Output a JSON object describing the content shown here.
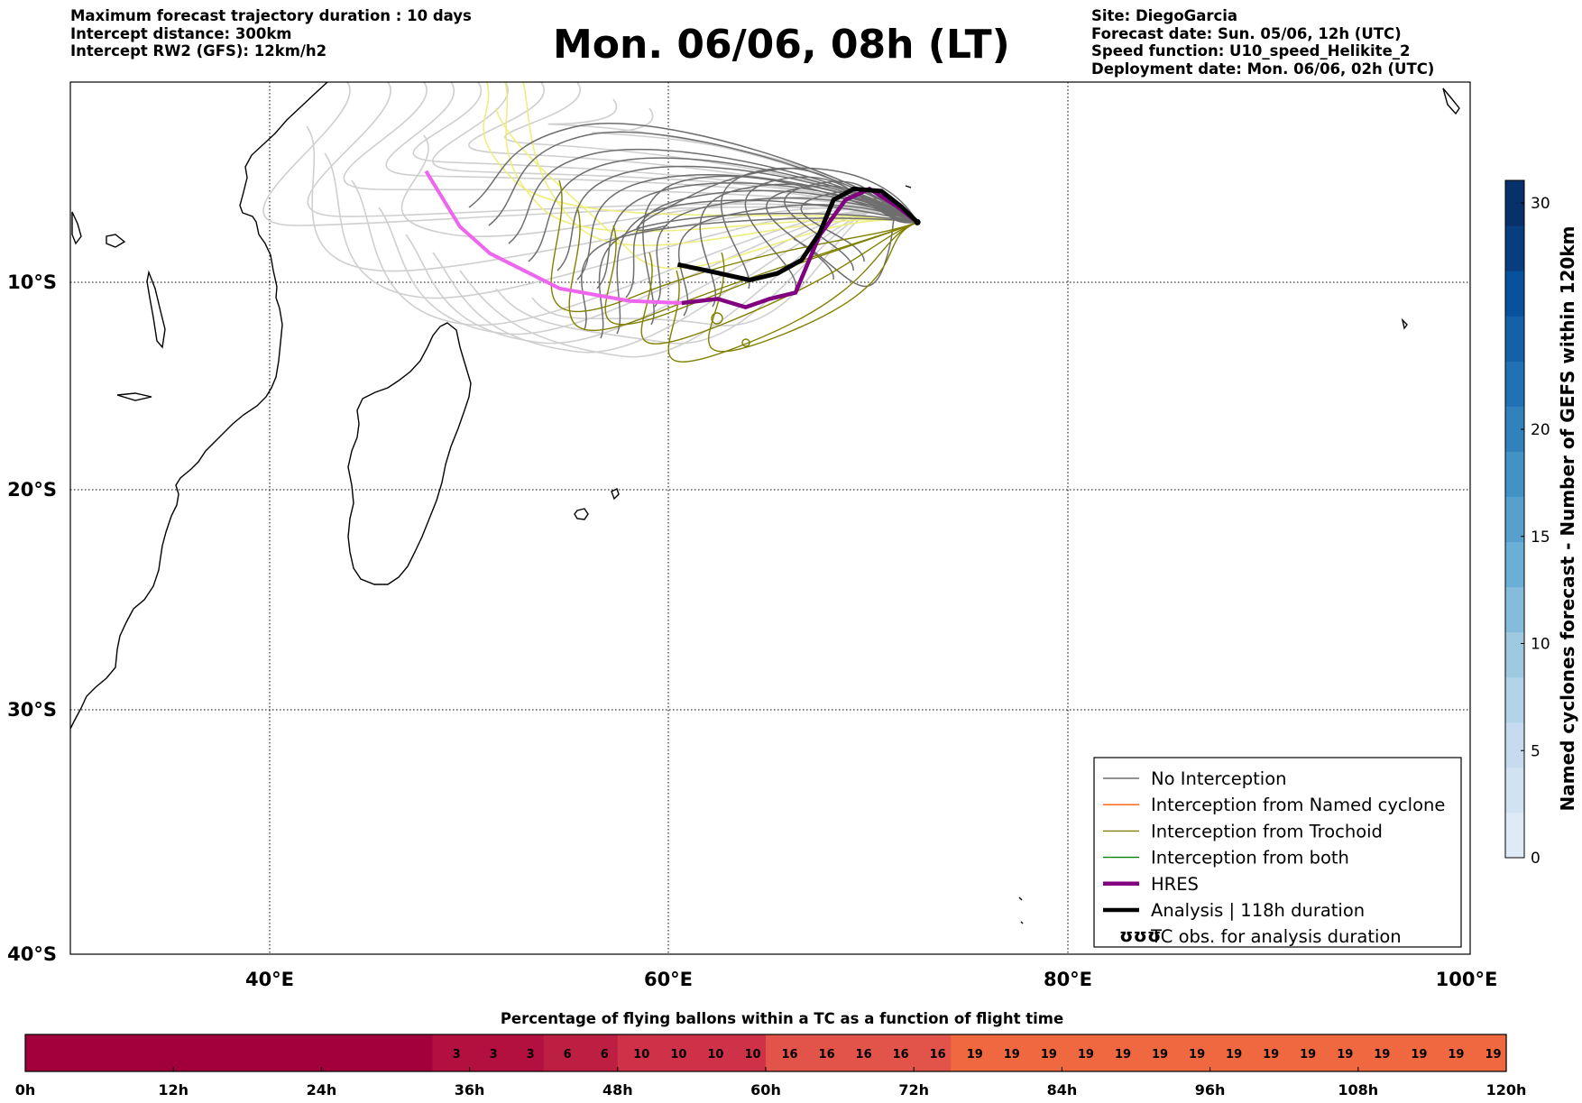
{
  "header": {
    "left_lines": [
      "Maximum forecast trajectory duration : 10 days",
      "Intercept distance: 300km",
      "Intercept RW2 (GFS):  12km/h2"
    ],
    "title": "Mon. 06/06, 08h (LT)",
    "right_lines": [
      "Site: DiegoGarcia",
      "Forecast date: Sun. 05/06, 12h (UTC)",
      "Speed function: U10_speed_Helikite_2",
      "Deployment date: Mon. 06/06, 02h (UTC)"
    ]
  },
  "map": {
    "lon_ticks": [
      "40°E",
      "60°E",
      "80°E",
      "100°E"
    ],
    "lat_ticks": [
      "10°S",
      "20°S",
      "30°S",
      "40°S"
    ],
    "colors": {
      "gefs_gray": "#6e6e6e",
      "gefs_light": "#cfcfcf",
      "gefs_yellow": "#eeee80",
      "trochoid": "#808000",
      "hres": "#800080",
      "hres_light": "#ee66ee",
      "analysis": "#000000"
    }
  },
  "legend": {
    "items": [
      {
        "label": "No Interception",
        "color": "#6e6e6e",
        "style": "thin"
      },
      {
        "label": "Interception from Named cyclone",
        "color": "#ff5a00",
        "style": "thin"
      },
      {
        "label": "Interception from Trochoid",
        "color": "#808000",
        "style": "thin"
      },
      {
        "label": "Interception from both",
        "color": "#008000",
        "style": "thin"
      },
      {
        "label": "HRES",
        "color": "#800080",
        "style": "thick"
      },
      {
        "label": "Analysis | 118h duration",
        "color": "#000000",
        "style": "thick"
      },
      {
        "label": "TC obs. for analysis duration",
        "color": "#000000",
        "style": "symbol",
        "symbol": "ʊʊʊ"
      }
    ]
  },
  "colorbar_right": {
    "label": "Named cyclones forecast - Number of GEFS within 120km",
    "ticks": [
      "0",
      "5",
      "10",
      "15",
      "20",
      "30"
    ],
    "colors": [
      "#deebf7",
      "#d1e3f3",
      "#c6dbef",
      "#b3d3e8",
      "#9ecae1",
      "#85bcdb",
      "#6baed6",
      "#57a0ce",
      "#4292c6",
      "#3181bd",
      "#2171b5",
      "#1461a8",
      "#08519c",
      "#083e80",
      "#08306b"
    ]
  },
  "colorbar_bottom": {
    "title": "Percentage of flying ballons within a TC as a function of flight time",
    "ticks": [
      "0h",
      "12h",
      "24h",
      "36h",
      "48h",
      "60h",
      "72h",
      "84h",
      "96h",
      "108h",
      "120h"
    ]
  },
  "chart_data": {
    "type": "map",
    "extent": {
      "lon": [
        30,
        100
      ],
      "lat": [
        -40,
        -1
      ]
    },
    "site": {
      "name": "DiegoGarcia",
      "lon": 72.4,
      "lat": -7.3
    },
    "analysis_track": [
      [
        72.4,
        -7.3
      ],
      [
        71.6,
        -6.6
      ],
      [
        70.6,
        -5.9
      ],
      [
        69.2,
        -5.8
      ],
      [
        68.2,
        -6.3
      ],
      [
        67.5,
        -7.8
      ],
      [
        66.6,
        -9.0
      ],
      [
        65.4,
        -9.6
      ],
      [
        64.0,
        -9.9
      ],
      [
        62.0,
        -9.5
      ],
      [
        60.4,
        -9.2
      ]
    ],
    "hres_track": [
      [
        72.4,
        -7.3
      ],
      [
        71.4,
        -6.6
      ],
      [
        70.0,
        -5.8
      ],
      [
        68.8,
        -6.3
      ],
      [
        67.5,
        -7.9
      ],
      [
        66.3,
        -10.5
      ],
      [
        65.0,
        -10.8
      ],
      [
        63.8,
        -11.2
      ],
      [
        62.4,
        -10.8
      ],
      [
        60.6,
        -11.0
      ]
    ],
    "hres_track_extended": [
      [
        60.6,
        -11.0
      ],
      [
        58.0,
        -10.9
      ],
      [
        54.5,
        -10.3
      ],
      [
        51.0,
        -8.7
      ],
      [
        49.5,
        -7.5
      ],
      [
        47.8,
        -5.0
      ]
    ],
    "bottom_bar": {
      "hours": [
        0,
        120
      ],
      "step_h": 3,
      "percent_by_step": [
        0,
        0,
        0,
        0,
        0,
        0,
        0,
        0,
        0,
        0,
        0,
        0,
        3,
        3,
        3,
        6,
        6,
        10,
        10,
        10,
        10,
        16,
        16,
        16,
        16,
        16,
        19,
        19,
        19,
        19,
        19,
        19,
        19,
        19,
        19,
        19,
        19,
        19,
        19,
        19,
        19
      ],
      "colors": {
        "0": "#a1003c",
        "3": "#b4103f",
        "6": "#bd1f43",
        "10": "#cf3149",
        "16": "#e25449",
        "19": "#f0683f"
      }
    }
  }
}
